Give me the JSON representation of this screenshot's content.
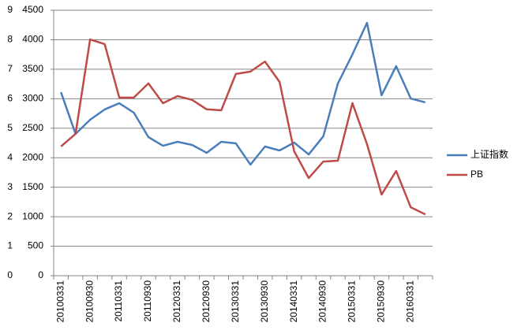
{
  "chart_data": {
    "type": "line",
    "categories": [
      "20100331",
      null,
      "20100930",
      null,
      "20110331",
      null,
      "20110930",
      null,
      "20120331",
      null,
      "20120930",
      null,
      "20130331",
      null,
      "20130930",
      null,
      "20140331",
      null,
      "20140930",
      null,
      "20150331",
      null,
      "20150930",
      null,
      "20160331",
      null
    ],
    "series": [
      {
        "name": "上证指数",
        "color": "#4a7ebb",
        "axis": "y2",
        "values": [
          3111,
          2404,
          2644,
          2818,
          2924,
          2764,
          2350,
          2203,
          2270,
          2217,
          2083,
          2270,
          2243,
          1883,
          2190,
          2123,
          2257,
          2056,
          2363,
          3258,
          3752,
          4286,
          3058,
          3552,
          3004,
          2938
        ]
      },
      {
        "name": "PB",
        "color": "#be4b48",
        "values": [
          4.38,
          4.81,
          8.01,
          7.85,
          6.04,
          6.04,
          6.52,
          5.85,
          6.09,
          5.96,
          5.64,
          5.61,
          6.84,
          6.92,
          7.26,
          6.57,
          4.22,
          3.31,
          3.87,
          3.9,
          5.85,
          4.46,
          2.75,
          3.55,
          2.32,
          2.08
        ]
      }
    ],
    "ylim": [
      0,
      9
    ],
    "yticks": [
      0,
      1,
      2,
      3,
      4,
      5,
      6,
      7,
      8,
      9
    ],
    "y2lim": [
      0,
      4500
    ],
    "y2ticks": [
      0,
      500,
      1000,
      1500,
      2000,
      2500,
      3000,
      3500,
      4000,
      4500
    ],
    "grid": true,
    "legend": "right"
  }
}
